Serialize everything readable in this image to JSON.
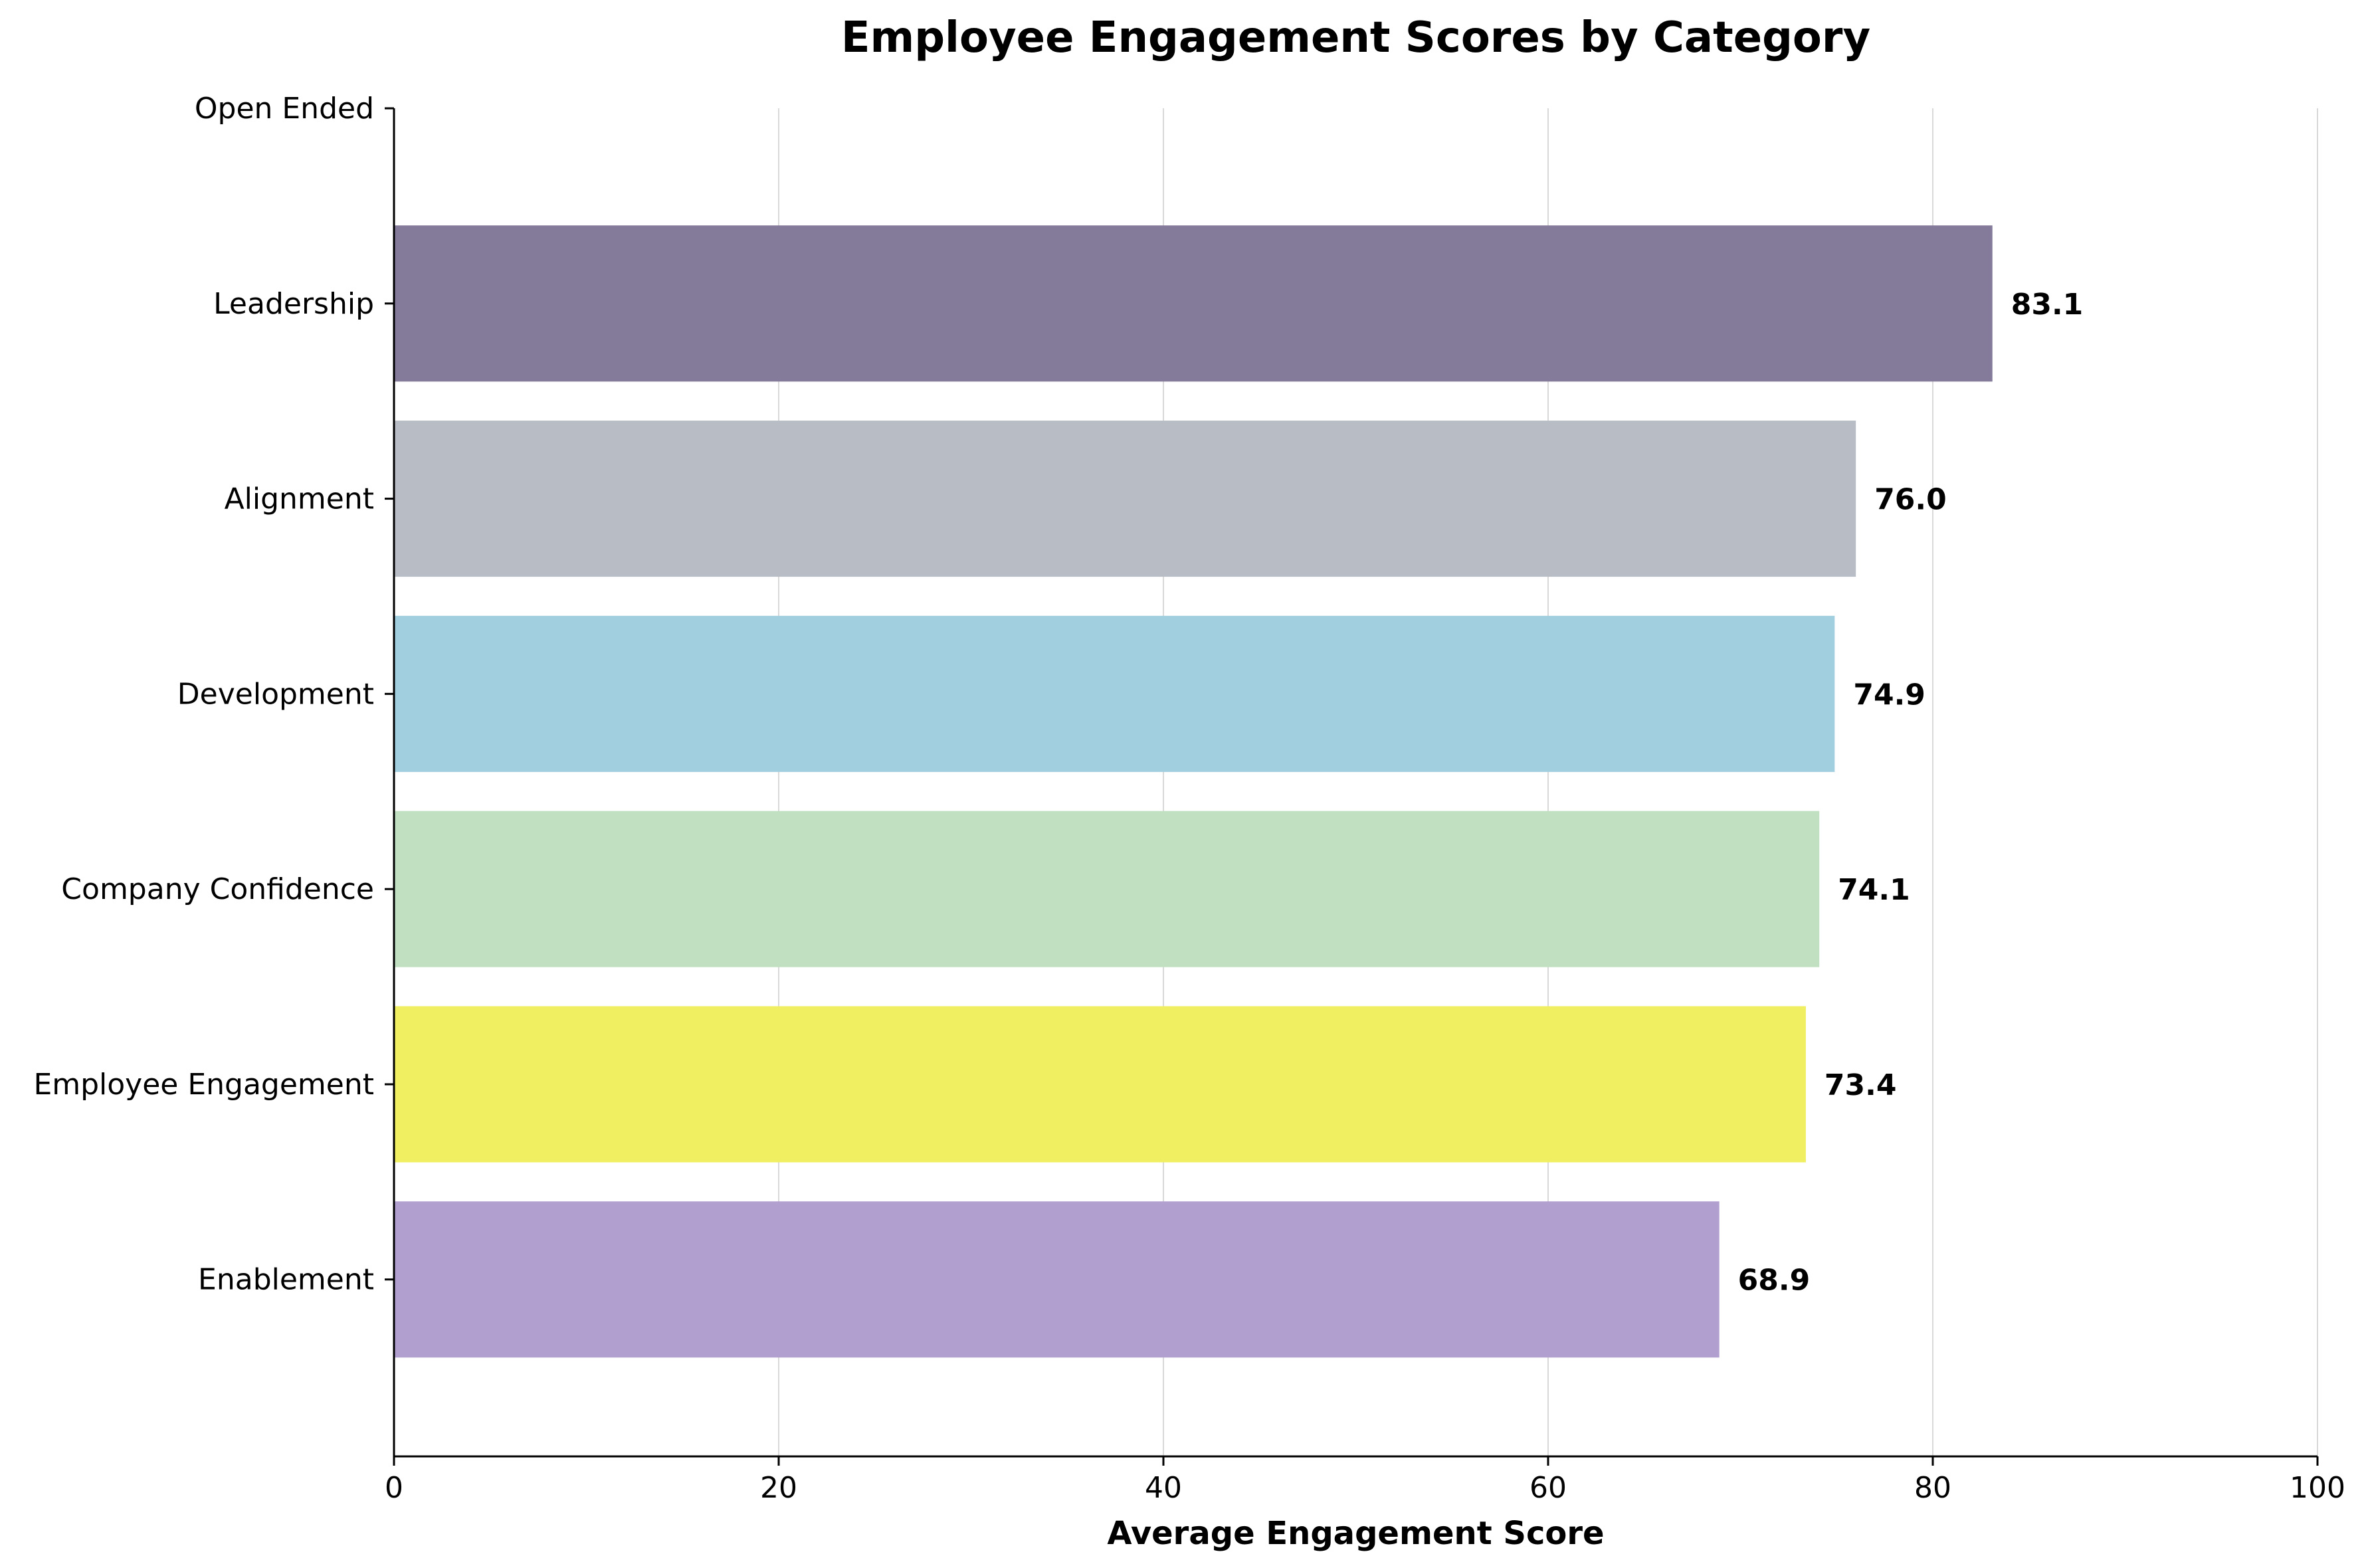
{
  "chart_data": {
    "type": "bar",
    "orientation": "horizontal",
    "title": "Employee Engagement Scores by Category",
    "xlabel": "Average Engagement Score",
    "ylabel": "",
    "xlim": [
      0,
      100
    ],
    "xticks": [
      0,
      20,
      40,
      60,
      80,
      100
    ],
    "grid": "x",
    "categories": [
      "Open Ended",
      "Leadership",
      "Alignment",
      "Development",
      "Company Confidence",
      "Employee Engagement",
      "Enablement"
    ],
    "values": [
      null,
      83.1,
      76.0,
      74.9,
      74.1,
      73.4,
      68.9
    ],
    "value_labels": [
      "",
      "83.1",
      "76.0",
      "74.9",
      "74.1",
      "73.4",
      "68.9"
    ],
    "colors": [
      "#ffffff",
      "#847a9a",
      "#b8bcc5",
      "#a1cfdf",
      "#c1e0c1",
      "#f0ef62",
      "#b19fcf"
    ]
  }
}
